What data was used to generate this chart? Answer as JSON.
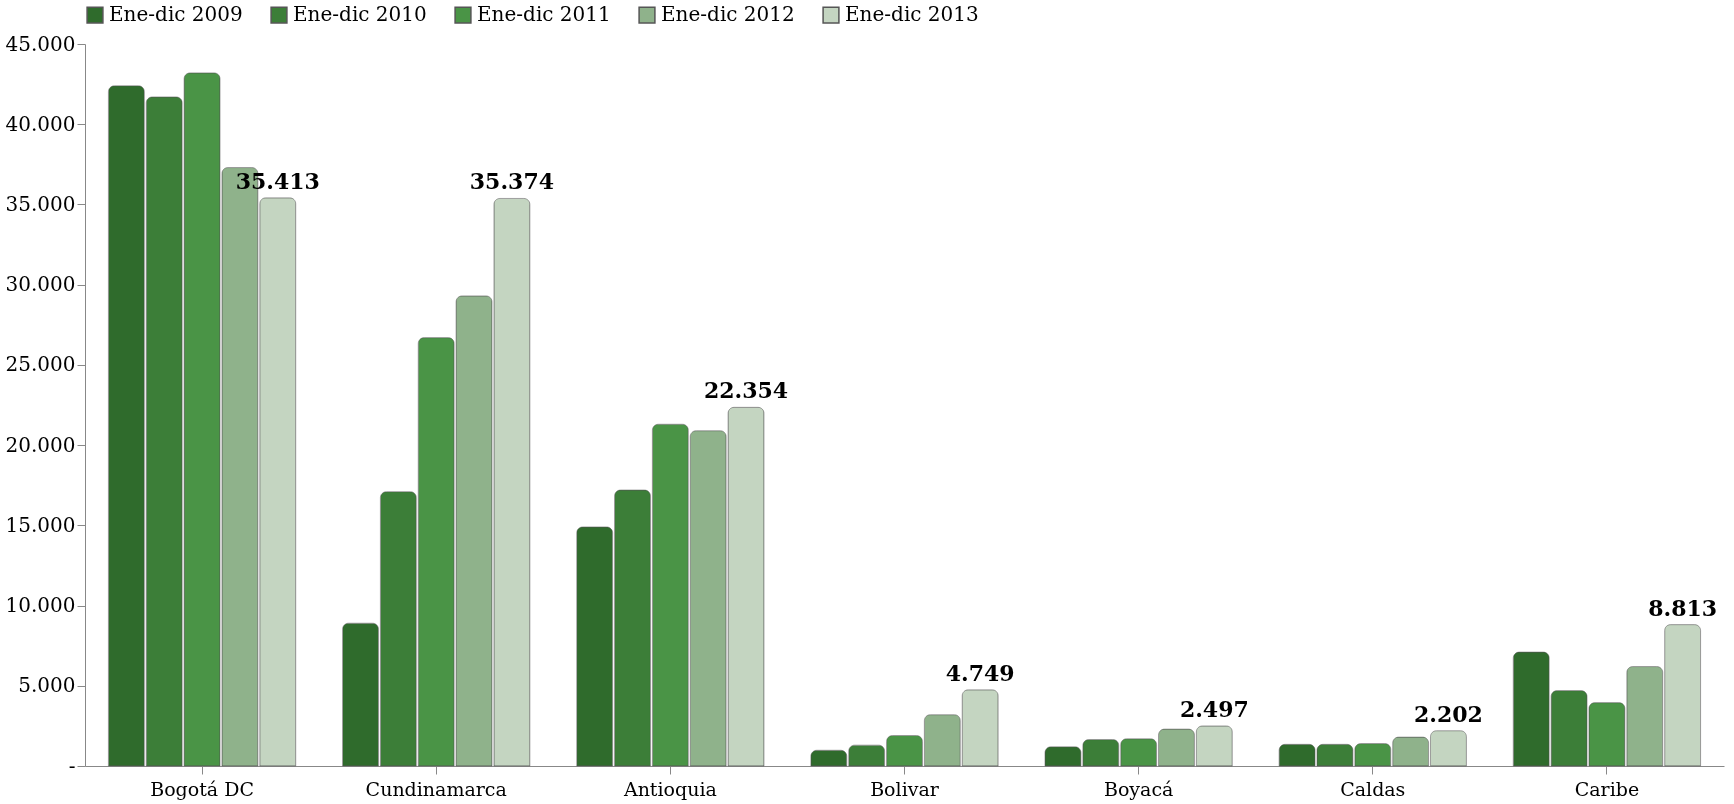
{
  "chart_data": {
    "type": "bar",
    "categories": [
      "Bogotá DC",
      "Cundinamarca",
      "Antioquia",
      "Bolivar",
      "Boyacá",
      "Caldas",
      "Caribe"
    ],
    "series": [
      {
        "name": "Ene-dic 2009",
        "color": "#2f6b2c",
        "values": [
          42400,
          8900,
          14900,
          980,
          1200,
          1350,
          7100
        ]
      },
      {
        "name": "Ene-dic 2010",
        "color": "#3c7e38",
        "values": [
          41700,
          17100,
          17200,
          1300,
          1650,
          1350,
          4700
        ]
      },
      {
        "name": "Ene-dic 2011",
        "color": "#4a9446",
        "values": [
          43200,
          26700,
          21300,
          1900,
          1700,
          1400,
          3950
        ]
      },
      {
        "name": "Ene-dic 2012",
        "color": "#8fb28b",
        "values": [
          37300,
          29300,
          20900,
          3200,
          2300,
          1800,
          6200
        ]
      },
      {
        "name": "Ene-dic 2013",
        "color": "#c4d5c1",
        "values": [
          35413,
          35374,
          22354,
          4749,
          2497,
          2202,
          8813
        ],
        "value_labels": [
          "35.413",
          "35.374",
          "22.354",
          "4.749",
          "2.497",
          "2.202",
          "8.813"
        ]
      }
    ],
    "ylim": [
      0,
      45000
    ],
    "yticks": [
      {
        "value": 0,
        "label": "-"
      },
      {
        "value": 5000,
        "label": "5.000"
      },
      {
        "value": 10000,
        "label": "10.000"
      },
      {
        "value": 15000,
        "label": "15.000"
      },
      {
        "value": 20000,
        "label": "20.000"
      },
      {
        "value": 25000,
        "label": "25.000"
      },
      {
        "value": 30000,
        "label": "30.000"
      },
      {
        "value": 35000,
        "label": "35.000"
      },
      {
        "value": 40000,
        "label": "40.000"
      },
      {
        "value": 45000,
        "label": "45.000"
      }
    ],
    "grid": false,
    "legend": "top"
  }
}
